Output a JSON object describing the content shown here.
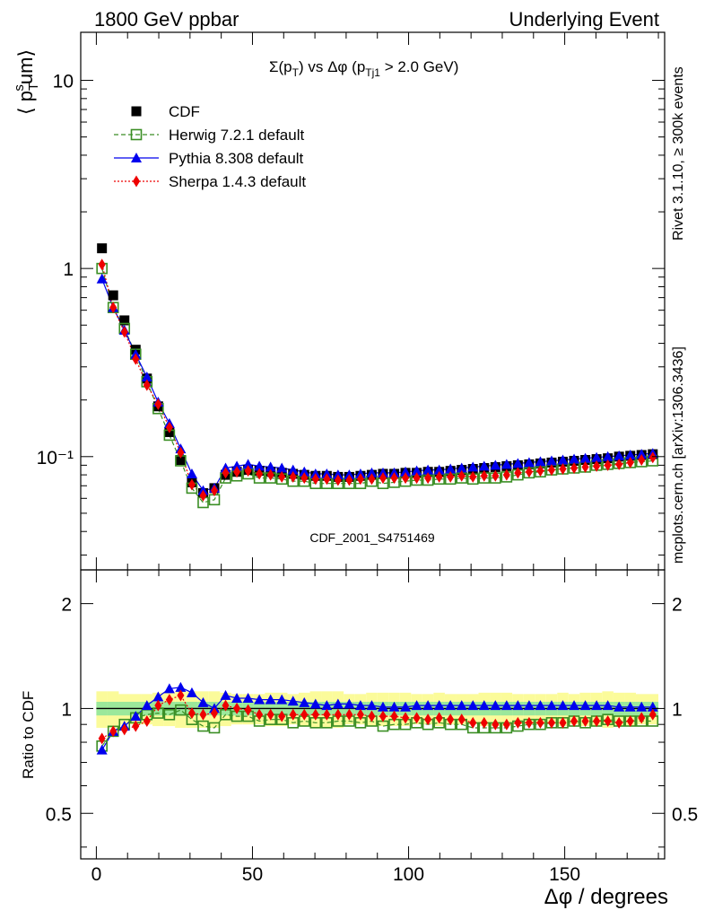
{
  "header": {
    "left": "1800 GeV ppbar",
    "right": "Underlying Event"
  },
  "side_labels": {
    "rivet": "Rivet 3.1.10, ≥ 300k events",
    "mcplots": "mcplots.cern.ch [arXiv:1306.3436]"
  },
  "chart_data": [
    {
      "type": "scatter",
      "panel": "main",
      "title": "Σ(p_T) vs Δφ (p_Tj1 > 2.0 GeV)",
      "ylabel": "⟨ p_T^s um⟩",
      "yscale": "log",
      "ylim": [
        0.025,
        18
      ],
      "xlim": [
        -5,
        182
      ],
      "yticks": [
        {
          "value": 0.1,
          "label": "10⁻¹"
        },
        {
          "value": 1,
          "label": "1"
        },
        {
          "value": 10,
          "label": "10"
        }
      ],
      "watermark": "CDF_2001_S4751469",
      "legend_position": "top-left",
      "x": [
        1.8,
        5.4,
        9,
        12.6,
        16.2,
        19.8,
        23.4,
        27,
        30.6,
        34.2,
        37.8,
        41.4,
        45,
        48.6,
        52.2,
        55.8,
        59.4,
        63,
        66.6,
        70.2,
        73.8,
        77.4,
        81,
        84.6,
        88.2,
        91.8,
        95.4,
        99,
        102.6,
        106.2,
        109.8,
        113.4,
        117,
        120.6,
        124.2,
        127.8,
        131.4,
        135,
        138.6,
        142.2,
        145.8,
        149.4,
        153,
        156.6,
        160.2,
        163.8,
        167.4,
        171,
        174.6,
        178.2
      ],
      "series": [
        {
          "name": "CDF",
          "style": "data",
          "values": [
            1.28,
            0.72,
            0.53,
            0.37,
            0.26,
            0.185,
            0.135,
            0.096,
            0.073,
            0.064,
            0.068,
            0.08,
            0.083,
            0.085,
            0.084,
            0.083,
            0.082,
            0.081,
            0.08,
            0.079,
            0.079,
            0.078,
            0.078,
            0.079,
            0.08,
            0.081,
            0.081,
            0.082,
            0.082,
            0.083,
            0.083,
            0.084,
            0.085,
            0.086,
            0.087,
            0.088,
            0.089,
            0.09,
            0.091,
            0.092,
            0.093,
            0.094,
            0.095,
            0.096,
            0.097,
            0.098,
            0.1,
            0.101,
            0.102,
            0.103
          ]
        },
        {
          "name": "Herwig 7.2.1 default",
          "style": "herwig",
          "values": [
            1.0,
            0.62,
            0.48,
            0.35,
            0.25,
            0.18,
            0.13,
            0.095,
            0.068,
            0.057,
            0.059,
            0.077,
            0.079,
            0.081,
            0.077,
            0.077,
            0.076,
            0.074,
            0.074,
            0.072,
            0.072,
            0.072,
            0.072,
            0.072,
            0.074,
            0.072,
            0.073,
            0.074,
            0.075,
            0.075,
            0.076,
            0.076,
            0.077,
            0.076,
            0.077,
            0.077,
            0.078,
            0.08,
            0.082,
            0.083,
            0.085,
            0.086,
            0.087,
            0.088,
            0.09,
            0.091,
            0.092,
            0.093,
            0.094,
            0.095
          ]
        },
        {
          "name": "Pythia 8.308 default",
          "style": "pythia",
          "values": [
            0.88,
            0.62,
            0.47,
            0.35,
            0.265,
            0.195,
            0.15,
            0.11,
            0.081,
            0.066,
            0.068,
            0.087,
            0.089,
            0.091,
            0.089,
            0.088,
            0.087,
            0.085,
            0.083,
            0.081,
            0.081,
            0.08,
            0.08,
            0.081,
            0.082,
            0.082,
            0.082,
            0.083,
            0.084,
            0.085,
            0.085,
            0.086,
            0.087,
            0.088,
            0.089,
            0.09,
            0.091,
            0.092,
            0.093,
            0.094,
            0.095,
            0.096,
            0.097,
            0.098,
            0.099,
            0.1,
            0.101,
            0.102,
            0.103,
            0.104
          ]
        },
        {
          "name": "Sherpa 1.4.3 default",
          "style": "sherpa",
          "values": [
            1.05,
            0.62,
            0.46,
            0.33,
            0.24,
            0.19,
            0.143,
            0.105,
            0.071,
            0.062,
            0.066,
            0.082,
            0.083,
            0.084,
            0.081,
            0.08,
            0.078,
            0.078,
            0.077,
            0.076,
            0.076,
            0.075,
            0.075,
            0.076,
            0.076,
            0.077,
            0.077,
            0.077,
            0.077,
            0.077,
            0.078,
            0.078,
            0.079,
            0.078,
            0.079,
            0.079,
            0.08,
            0.082,
            0.083,
            0.084,
            0.085,
            0.086,
            0.087,
            0.088,
            0.089,
            0.09,
            0.091,
            0.093,
            0.096,
            0.099
          ]
        }
      ]
    },
    {
      "type": "scatter",
      "panel": "ratio",
      "ylabel": "Ratio to CDF",
      "xlabel": "Δφ / degrees",
      "yscale": "log",
      "ylim": [
        0.37,
        2.5
      ],
      "xlim": [
        -5,
        182
      ],
      "yticks": [
        {
          "value": 0.5,
          "label": "0.5"
        },
        {
          "value": 1,
          "label": "1"
        },
        {
          "value": 2,
          "label": "2"
        }
      ],
      "xticks": [
        0,
        50,
        100,
        150
      ],
      "band_inner_halfwidth": 0.045,
      "band_outer_halfwidth": [
        0.12,
        0.12,
        0.1,
        0.1,
        0.1,
        0.11,
        0.11,
        0.12,
        0.12,
        0.12,
        0.12,
        0.11,
        0.1,
        0.1,
        0.1,
        0.11,
        0.11,
        0.1,
        0.11,
        0.12,
        0.12,
        0.12,
        0.1,
        0.1,
        0.11,
        0.11,
        0.11,
        0.11,
        0.1,
        0.1,
        0.11,
        0.1,
        0.1,
        0.1,
        0.11,
        0.11,
        0.11,
        0.1,
        0.1,
        0.1,
        0.1,
        0.11,
        0.1,
        0.11,
        0.11,
        0.12,
        0.11,
        0.11,
        0.1,
        0.1
      ],
      "x": [
        1.8,
        5.4,
        9,
        12.6,
        16.2,
        19.8,
        23.4,
        27,
        30.6,
        34.2,
        37.8,
        41.4,
        45,
        48.6,
        52.2,
        55.8,
        59.4,
        63,
        66.6,
        70.2,
        73.8,
        77.4,
        81,
        84.6,
        88.2,
        91.8,
        95.4,
        99,
        102.6,
        106.2,
        109.8,
        113.4,
        117,
        120.6,
        124.2,
        127.8,
        131.4,
        135,
        138.6,
        142.2,
        145.8,
        149.4,
        153,
        156.6,
        160.2,
        163.8,
        167.4,
        171,
        174.6,
        178.2
      ],
      "series": [
        {
          "name": "Herwig 7.2.1 default",
          "style": "herwig",
          "values": [
            0.78,
            0.86,
            0.9,
            0.94,
            0.96,
            0.97,
            0.96,
            0.99,
            0.93,
            0.89,
            0.88,
            0.96,
            0.95,
            0.95,
            0.92,
            0.93,
            0.93,
            0.91,
            0.92,
            0.91,
            0.91,
            0.92,
            0.92,
            0.91,
            0.92,
            0.89,
            0.9,
            0.9,
            0.91,
            0.9,
            0.91,
            0.9,
            0.9,
            0.88,
            0.88,
            0.88,
            0.88,
            0.89,
            0.9,
            0.9,
            0.91,
            0.91,
            0.92,
            0.91,
            0.92,
            0.93,
            0.92,
            0.92,
            0.92,
            0.92
          ]
        },
        {
          "name": "Pythia 8.308 default",
          "style": "pythia",
          "values": [
            0.76,
            0.86,
            0.89,
            0.95,
            1.02,
            1.08,
            1.14,
            1.15,
            1.11,
            1.04,
            1.0,
            1.09,
            1.07,
            1.07,
            1.06,
            1.06,
            1.06,
            1.05,
            1.04,
            1.03,
            1.02,
            1.03,
            1.03,
            1.02,
            1.02,
            1.01,
            1.01,
            1.01,
            1.02,
            1.02,
            1.02,
            1.02,
            1.02,
            1.02,
            1.02,
            1.02,
            1.02,
            1.02,
            1.02,
            1.02,
            1.02,
            1.02,
            1.02,
            1.02,
            1.02,
            1.02,
            1.01,
            1.01,
            1.01,
            1.01
          ]
        },
        {
          "name": "Sherpa 1.4.3 default",
          "style": "sherpa",
          "values": [
            0.82,
            0.86,
            0.87,
            0.89,
            0.92,
            1.02,
            1.06,
            1.09,
            0.97,
            0.96,
            0.97,
            1.02,
            1.0,
            0.99,
            0.96,
            0.96,
            0.95,
            0.96,
            0.96,
            0.96,
            0.96,
            0.96,
            0.96,
            0.96,
            0.95,
            0.95,
            0.95,
            0.94,
            0.94,
            0.93,
            0.94,
            0.93,
            0.93,
            0.91,
            0.91,
            0.9,
            0.9,
            0.91,
            0.91,
            0.91,
            0.91,
            0.91,
            0.92,
            0.92,
            0.92,
            0.92,
            0.91,
            0.92,
            0.94,
            0.96
          ]
        }
      ]
    }
  ],
  "colors": {
    "cdf": "#000000",
    "herwig": "#3a8e24",
    "pythia": "#0000ee",
    "sherpa": "#ee0000",
    "band_inner": "#9be89b",
    "band_outer": "#fbfb9a",
    "watermark": "#999999",
    "side_text": "#8c8c8c"
  }
}
